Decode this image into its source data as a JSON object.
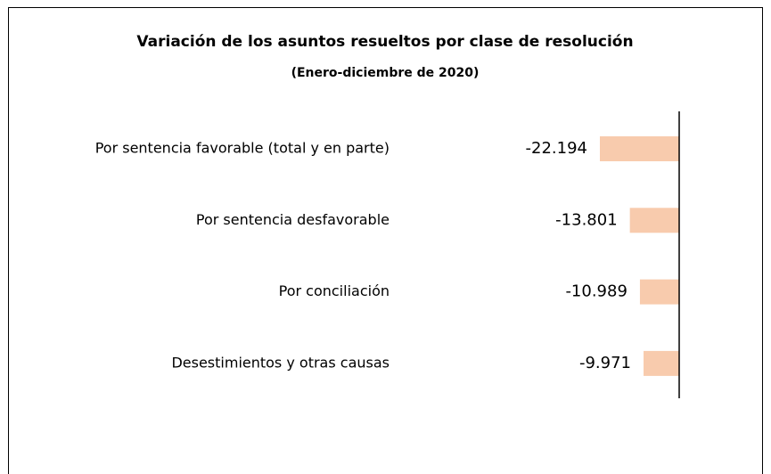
{
  "chart_data": {
    "type": "hbar",
    "title": "Variación de los asuntos resueltos por clase de resolución",
    "subtitle": "(Enero-diciembre de 2020)",
    "categories": [
      "Por sentencia favorable (total y en parte)",
      "Por sentencia desfavorable",
      "Por conciliación",
      "Desestimientos y otras causas"
    ],
    "values": [
      -22194,
      -13801,
      -10989,
      -9971
    ],
    "value_labels": [
      "-22.194",
      "-13.801",
      "-10.989",
      "-9.971"
    ],
    "color": "#f8cbad"
  }
}
